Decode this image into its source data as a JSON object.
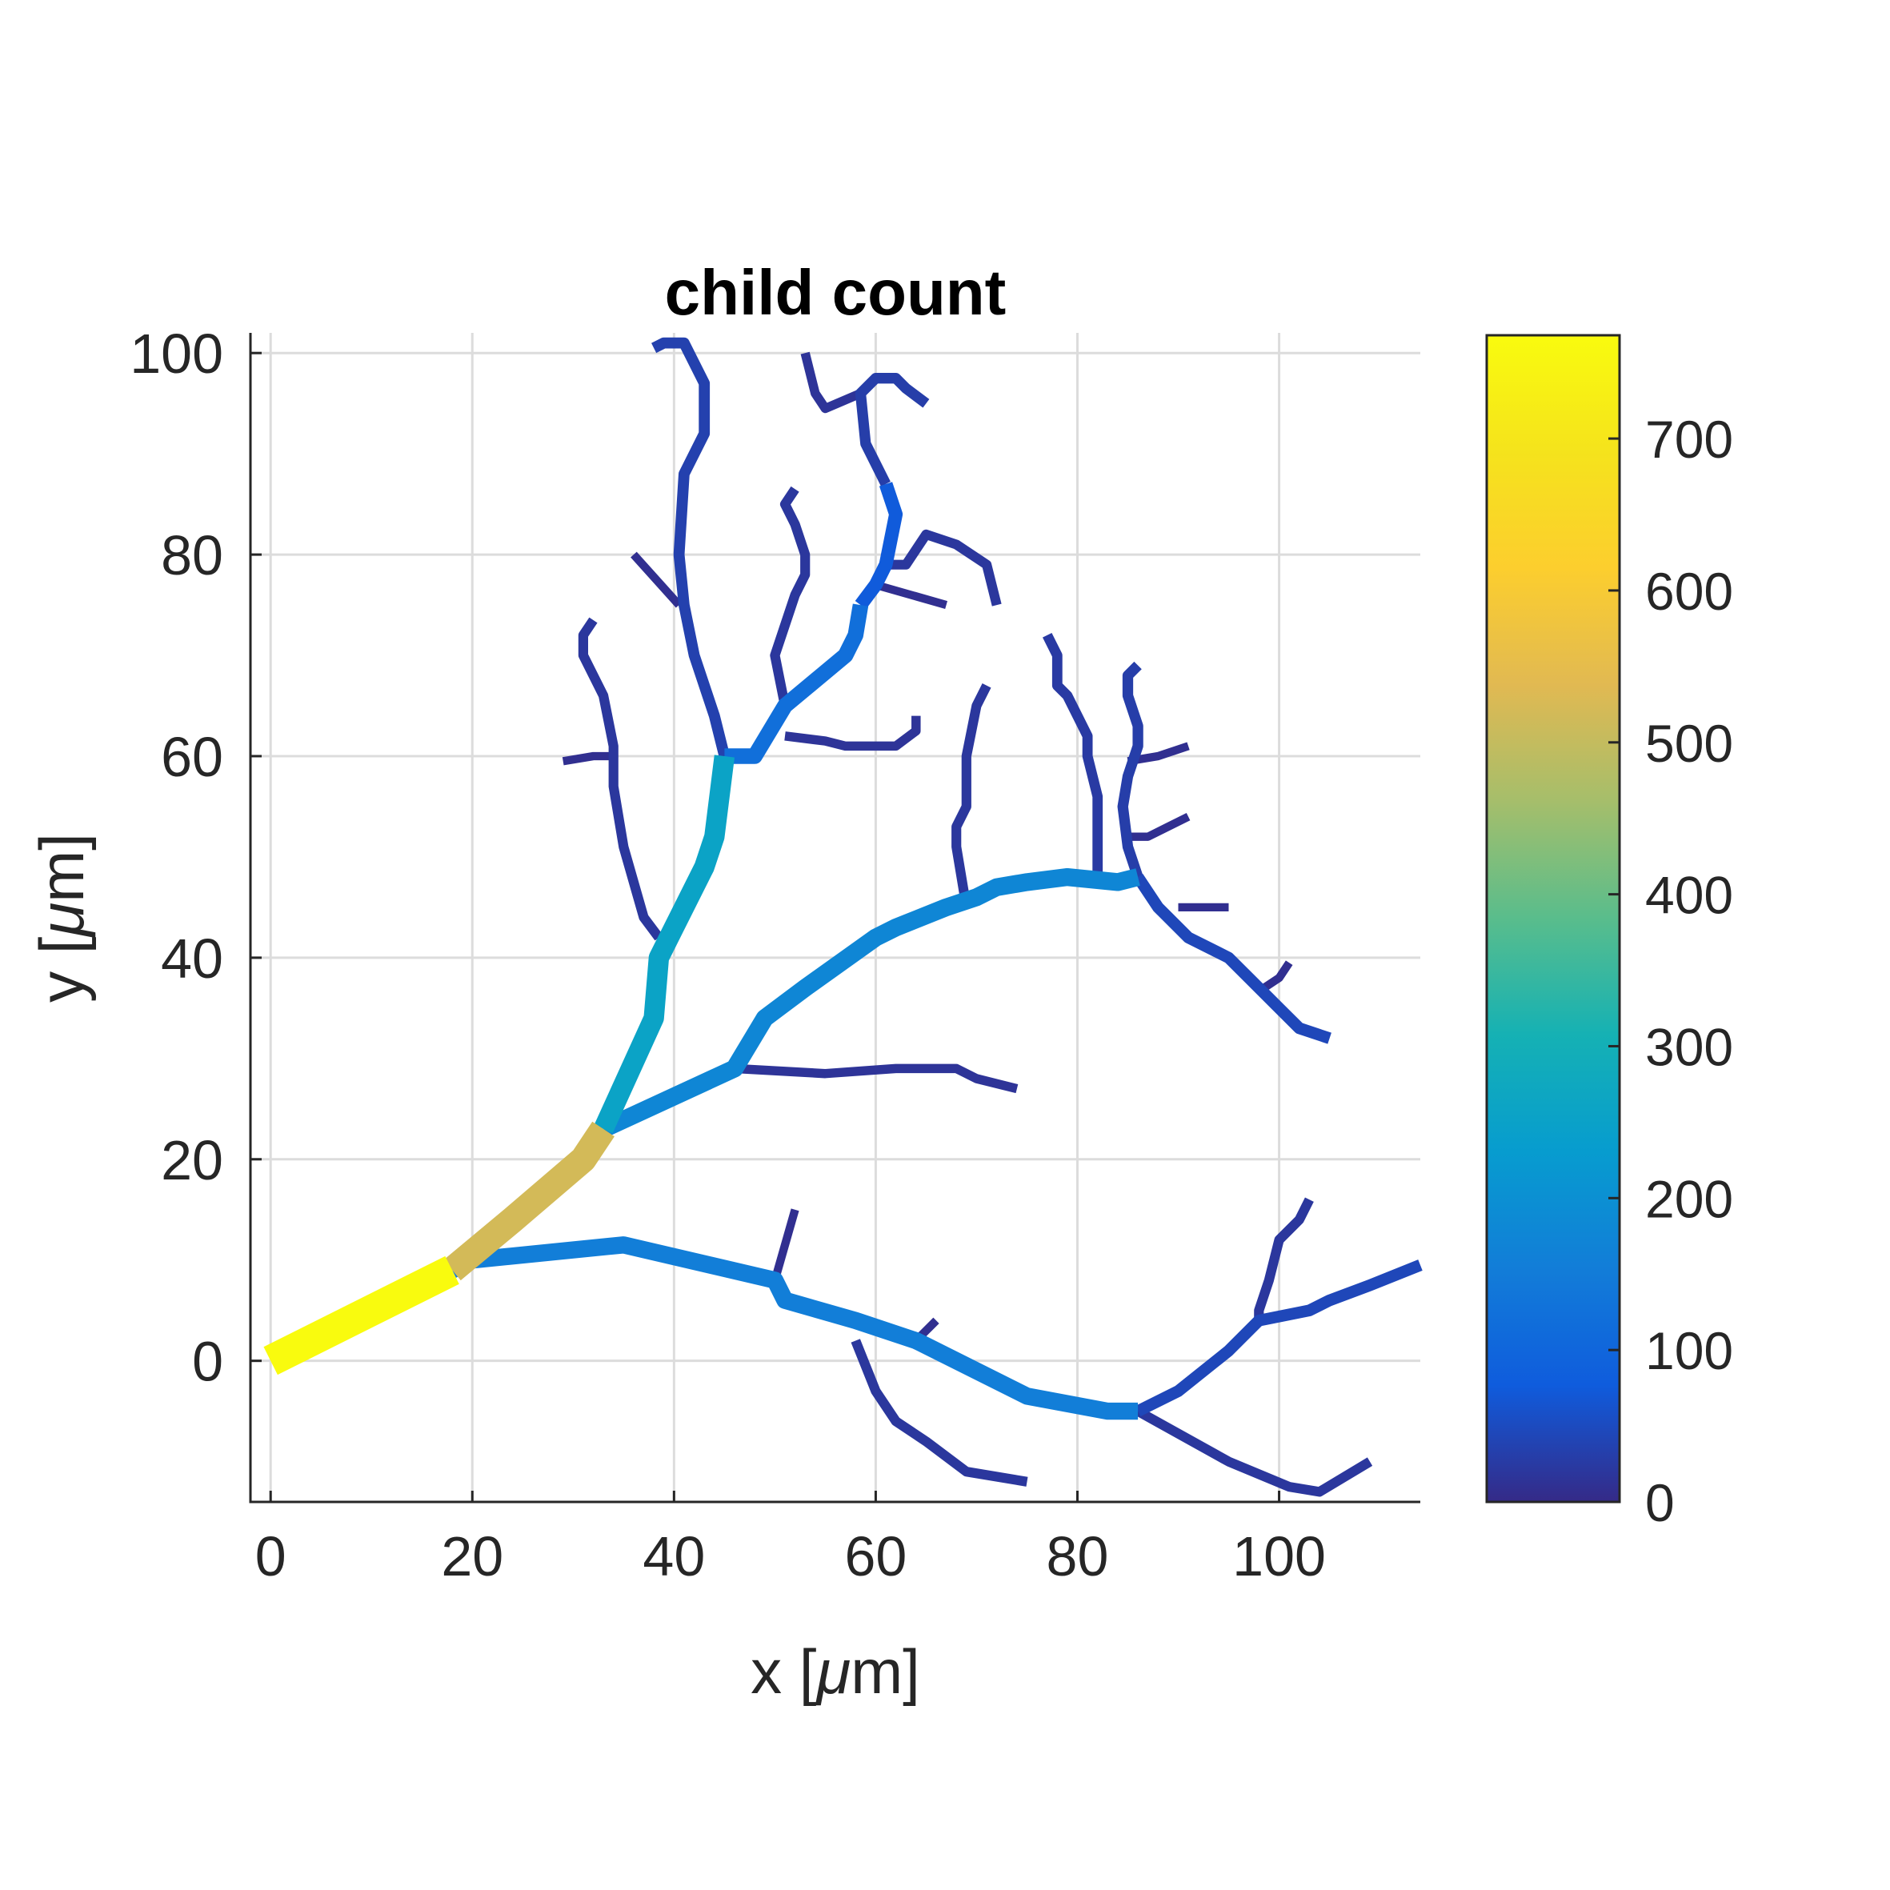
{
  "chart_data": {
    "type": "line",
    "title": "child count",
    "xlabel": "x [",
    "xlabel_unit": "μ",
    "xlabel_end": "m]",
    "ylabel": "y [",
    "ylabel_unit": "μ",
    "ylabel_end": "m]",
    "xlim": [
      -2,
      114
    ],
    "ylim": [
      -14,
      102
    ],
    "xticks": [
      0,
      20,
      40,
      60,
      80,
      100
    ],
    "xtick_labels": [
      "0",
      "20",
      "40",
      "60",
      "80",
      "100"
    ],
    "yticks": [
      0,
      20,
      40,
      60,
      80,
      100
    ],
    "ytick_labels": [
      "0",
      "20",
      "40",
      "60",
      "80",
      "100"
    ],
    "grid": true,
    "colorbar": {
      "limits": [
        0,
        768
      ],
      "ticks": [
        0,
        100,
        200,
        300,
        400,
        500,
        600,
        700
      ],
      "tick_labels": [
        "0",
        "100",
        "200",
        "300",
        "400",
        "500",
        "600",
        "700"
      ],
      "colormap": "parula"
    },
    "segments": [
      {
        "points": [
          [
            0,
            0
          ],
          [
            10,
            5
          ],
          [
            18,
            9
          ]
        ],
        "value": 768
      },
      {
        "points": [
          [
            18,
            9
          ],
          [
            24,
            14
          ],
          [
            31,
            20
          ],
          [
            33,
            23
          ]
        ],
        "value": 520
      },
      {
        "points": [
          [
            33,
            23
          ],
          [
            38,
            34
          ],
          [
            38.5,
            40
          ],
          [
            40,
            43
          ],
          [
            43,
            49
          ],
          [
            44,
            52
          ],
          [
            45,
            60
          ]
        ],
        "value": 255
      },
      {
        "points": [
          [
            33,
            23
          ],
          [
            46,
            29
          ],
          [
            49,
            34
          ],
          [
            53,
            37
          ],
          [
            60,
            42
          ],
          [
            62,
            43
          ],
          [
            67,
            45
          ],
          [
            70,
            46
          ],
          [
            72,
            47
          ],
          [
            75,
            47.5
          ],
          [
            79,
            48
          ],
          [
            84,
            47.5
          ],
          [
            86,
            48
          ]
        ],
        "value": 175
      },
      {
        "points": [
          [
            18,
            9
          ],
          [
            20,
            10
          ],
          [
            35,
            11.5
          ],
          [
            50,
            8
          ],
          [
            51,
            6
          ],
          [
            58,
            4
          ],
          [
            64,
            2
          ],
          [
            75,
            -3.5
          ],
          [
            83,
            -5
          ],
          [
            86,
            -5
          ]
        ],
        "value": 155
      },
      {
        "points": [
          [
            45,
            60
          ],
          [
            48,
            60
          ],
          [
            51,
            65
          ],
          [
            57,
            70
          ],
          [
            58,
            72
          ],
          [
            58.5,
            75
          ]
        ],
        "value": 120
      },
      {
        "points": [
          [
            58.5,
            75
          ],
          [
            60,
            77
          ],
          [
            61,
            79
          ],
          [
            62,
            84
          ],
          [
            61,
            87
          ]
        ],
        "value": 75
      },
      {
        "points": [
          [
            61,
            87
          ],
          [
            59,
            91
          ],
          [
            58.5,
            96
          ],
          [
            60,
            97.5
          ],
          [
            62,
            97.5
          ],
          [
            63,
            96.5
          ],
          [
            65,
            95
          ]
        ],
        "value": 30
      },
      {
        "points": [
          [
            58.5,
            96
          ],
          [
            55,
            94.5
          ],
          [
            54,
            96
          ],
          [
            53,
            100
          ]
        ],
        "value": 15
      },
      {
        "points": [
          [
            61,
            79
          ],
          [
            63,
            79
          ],
          [
            65,
            82
          ],
          [
            68,
            81
          ],
          [
            71,
            79
          ],
          [
            72,
            75
          ]
        ],
        "value": 20
      },
      {
        "points": [
          [
            60,
            77
          ],
          [
            67,
            75
          ]
        ],
        "value": 8
      },
      {
        "points": [
          [
            51,
            62
          ],
          [
            55,
            61.5
          ],
          [
            57,
            61
          ],
          [
            62,
            61
          ],
          [
            64,
            62.5
          ],
          [
            64,
            64
          ]
        ],
        "value": 15
      },
      {
        "points": [
          [
            51,
            65
          ],
          [
            50,
            70
          ],
          [
            52,
            76
          ],
          [
            53,
            78
          ],
          [
            53,
            80
          ],
          [
            52,
            83
          ],
          [
            51,
            85
          ],
          [
            52,
            86.5
          ]
        ],
        "value": 20
      },
      {
        "points": [
          [
            45,
            60
          ],
          [
            44,
            64
          ],
          [
            42,
            70
          ],
          [
            41,
            75
          ],
          [
            40.5,
            80
          ],
          [
            41,
            88
          ],
          [
            43,
            92
          ],
          [
            43,
            97
          ],
          [
            41,
            101
          ],
          [
            39,
            101
          ],
          [
            38,
            100.5
          ]
        ],
        "value": 35
      },
      {
        "points": [
          [
            40.5,
            75
          ],
          [
            36,
            80
          ]
        ],
        "value": 8
      },
      {
        "points": [
          [
            38.5,
            42
          ],
          [
            37,
            44
          ],
          [
            35,
            51
          ],
          [
            34,
            57
          ],
          [
            34,
            61
          ],
          [
            33,
            66
          ],
          [
            31,
            70
          ],
          [
            31,
            72
          ],
          [
            32,
            73.5
          ]
        ],
        "value": 20
      },
      {
        "points": [
          [
            34,
            60
          ],
          [
            32,
            60
          ],
          [
            29,
            59.5
          ]
        ],
        "value": 8
      },
      {
        "points": [
          [
            46,
            29
          ],
          [
            55,
            28.5
          ],
          [
            62,
            29
          ],
          [
            68,
            29
          ],
          [
            70,
            28
          ],
          [
            74,
            27
          ]
        ],
        "value": 15
      },
      {
        "points": [
          [
            69,
            45
          ],
          [
            68,
            51
          ],
          [
            68,
            53
          ],
          [
            69,
            55
          ],
          [
            69,
            57
          ],
          [
            69,
            60
          ],
          [
            70,
            65
          ],
          [
            71,
            67
          ]
        ],
        "value": 20
      },
      {
        "points": [
          [
            82,
            48
          ],
          [
            82,
            53
          ],
          [
            82,
            56
          ],
          [
            81,
            60
          ],
          [
            81,
            62
          ],
          [
            79,
            66
          ],
          [
            78,
            67
          ],
          [
            78,
            70
          ],
          [
            77,
            72
          ]
        ],
        "value": 25
      },
      {
        "points": [
          [
            86,
            48
          ],
          [
            88,
            45
          ],
          [
            91,
            42
          ],
          [
            95,
            40
          ],
          [
            97,
            38
          ],
          [
            100,
            35
          ],
          [
            102,
            33
          ],
          [
            105,
            32
          ]
        ],
        "value": 45
      },
      {
        "points": [
          [
            86,
            48
          ],
          [
            85,
            51
          ],
          [
            84.5,
            55
          ],
          [
            85,
            58
          ],
          [
            86,
            61
          ],
          [
            86,
            63
          ],
          [
            85,
            66
          ],
          [
            85,
            68
          ],
          [
            86,
            69
          ]
        ],
        "value": 30
      },
      {
        "points": [
          [
            84.5,
            52
          ],
          [
            87,
            52
          ],
          [
            89,
            53
          ],
          [
            91,
            54
          ]
        ],
        "value": 8
      },
      {
        "points": [
          [
            85,
            59.5
          ],
          [
            88,
            60
          ],
          [
            91,
            61
          ]
        ],
        "value": 8
      },
      {
        "points": [
          [
            90,
            45
          ],
          [
            92,
            45
          ],
          [
            95,
            45
          ]
        ],
        "value": 8
      },
      {
        "points": [
          [
            98.5,
            37
          ],
          [
            100,
            38
          ],
          [
            101,
            39.5
          ]
        ],
        "value": 8
      },
      {
        "points": [
          [
            86,
            -5
          ],
          [
            90,
            -3
          ],
          [
            95,
            1
          ],
          [
            98,
            4
          ],
          [
            103,
            5
          ],
          [
            105,
            6
          ],
          [
            109,
            7.5
          ],
          [
            114,
            9.5
          ]
        ],
        "value": 45
      },
      {
        "points": [
          [
            98,
            4
          ],
          [
            98,
            5
          ],
          [
            99,
            8
          ],
          [
            100,
            12
          ],
          [
            102,
            14
          ],
          [
            103,
            16
          ]
        ],
        "value": 20
      },
      {
        "points": [
          [
            86,
            -5
          ],
          [
            95,
            -10
          ],
          [
            101,
            -12.5
          ],
          [
            104,
            -13
          ],
          [
            109,
            -10
          ]
        ],
        "value": 20
      },
      {
        "points": [
          [
            58,
            2
          ],
          [
            60,
            -3
          ],
          [
            62,
            -6
          ],
          [
            65,
            -8
          ],
          [
            69,
            -11
          ],
          [
            75,
            -12
          ]
        ],
        "value": 20
      },
      {
        "points": [
          [
            64,
            2
          ],
          [
            66,
            4
          ]
        ],
        "value": 8
      },
      {
        "points": [
          [
            50,
            8
          ],
          [
            52,
            15
          ]
        ],
        "value": 8
      }
    ]
  }
}
